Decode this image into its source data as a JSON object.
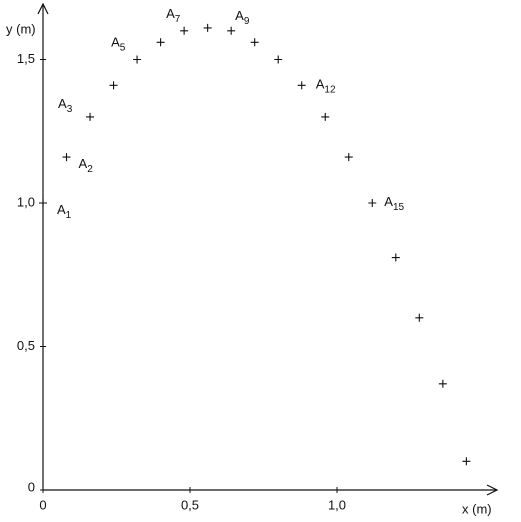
{
  "chart_data": {
    "type": "scatter",
    "x_label": "x (m)",
    "y_label": "y (m)",
    "x": [
      0,
      0.08,
      0.16,
      0.24,
      0.32,
      0.4,
      0.48,
      0.56,
      0.64,
      0.72,
      0.8,
      0.88,
      0.96,
      1.04,
      1.12,
      1.2,
      1.28,
      1.36,
      1.44
    ],
    "values": [
      1.0,
      1.16,
      1.3,
      1.41,
      1.5,
      1.56,
      1.6,
      1.61,
      1.6,
      1.56,
      1.5,
      1.41,
      1.3,
      1.16,
      1.0,
      0.81,
      0.6,
      0.37,
      0.1
    ],
    "point_labels": [
      {
        "text": "A",
        "sub": "1"
      },
      {
        "text": "A",
        "sub": "2"
      },
      {
        "text": "A",
        "sub": "3"
      },
      null,
      {
        "text": "A",
        "sub": "5"
      },
      null,
      {
        "text": "A",
        "sub": "7"
      },
      null,
      {
        "text": "A",
        "sub": "9"
      },
      null,
      null,
      {
        "text": "A",
        "sub": "12"
      },
      null,
      null,
      {
        "text": "A",
        "sub": "15"
      },
      null,
      null,
      null,
      null
    ],
    "color": "#111111",
    "xlim": [
      0,
      1.52
    ],
    "ylim": [
      0,
      1.68
    ],
    "xticks": [
      0,
      {
        "value": 0.5,
        "label": "0,5"
      },
      {
        "value": 1.0,
        "label": "1,0"
      }
    ],
    "yticks": [
      0,
      {
        "value": 0.5,
        "label": "0,5"
      },
      {
        "value": 1.0,
        "label": "1,0"
      },
      {
        "value": 1.5,
        "label": "1,5"
      }
    ]
  }
}
